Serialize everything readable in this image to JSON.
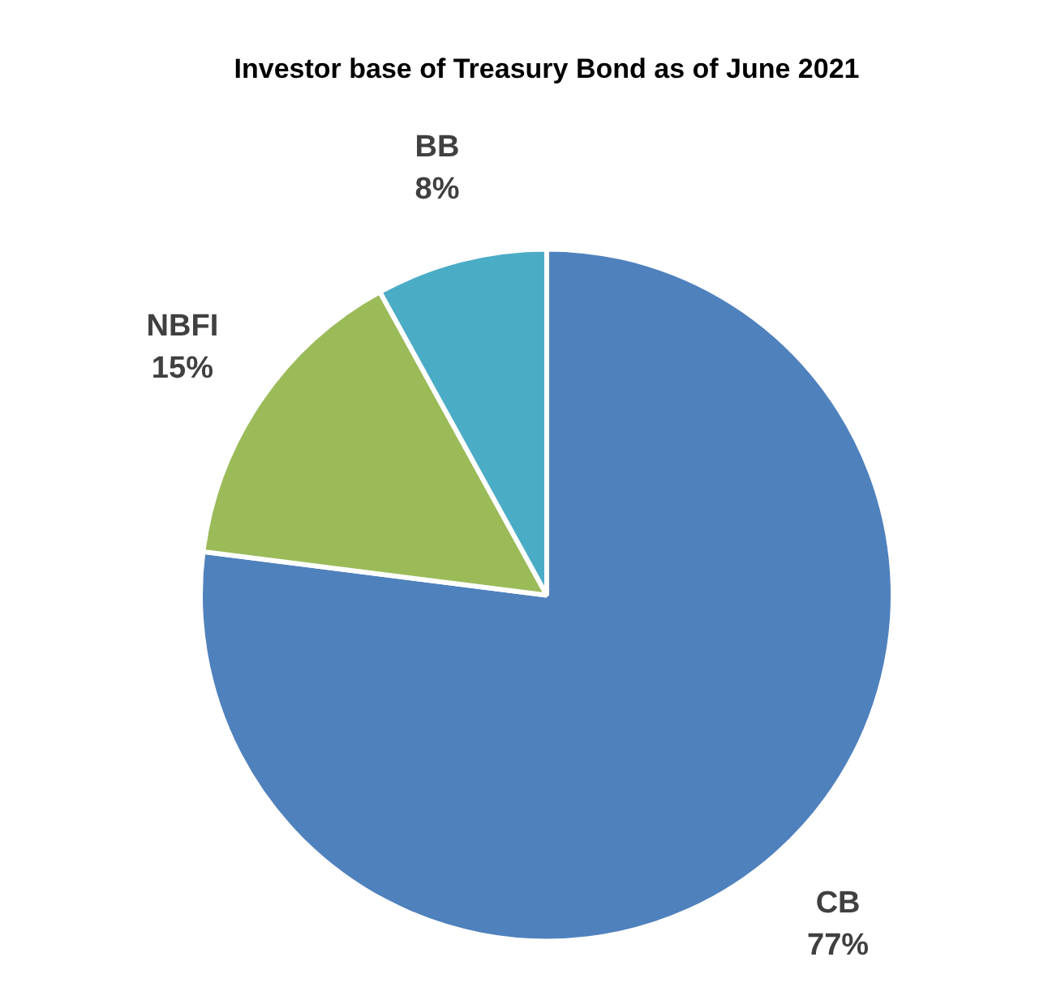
{
  "chart_data": {
    "type": "pie",
    "title": "Investor base of Treasury Bond as of June 2021",
    "categories": [
      "CB",
      "NBFI",
      "BB"
    ],
    "values": [
      77,
      15,
      8
    ],
    "value_labels": [
      "77%",
      "15%",
      "8%"
    ],
    "colors": [
      "#4f81bd",
      "#9bbb59",
      "#4bacc6"
    ]
  }
}
